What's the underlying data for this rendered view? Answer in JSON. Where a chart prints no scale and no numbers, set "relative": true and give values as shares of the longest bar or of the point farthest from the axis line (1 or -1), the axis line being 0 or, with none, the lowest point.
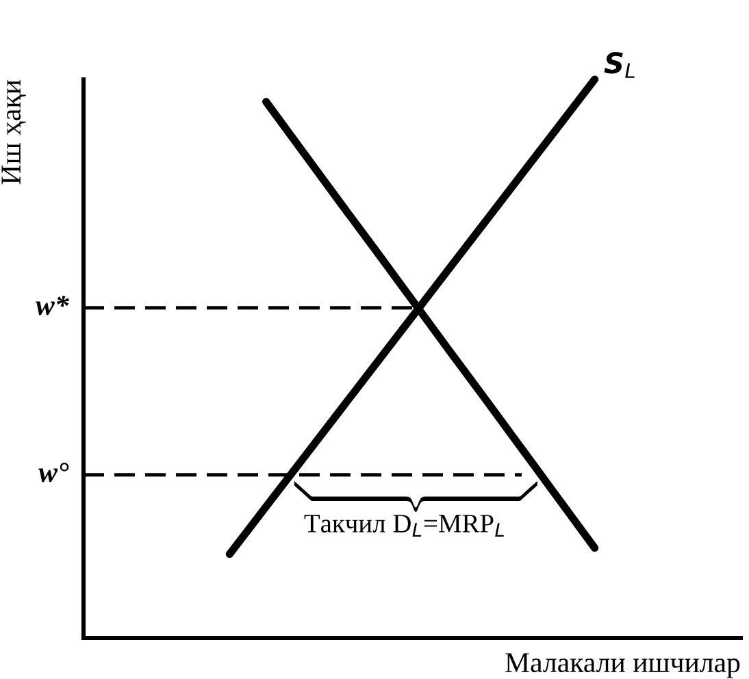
{
  "chart_data": {
    "type": "line",
    "relative": true,
    "xlabel": "Малакали ишчилар",
    "ylabel": "Иш ҳақи",
    "marker": "none",
    "categories": [
      null,
      null,
      null,
      null,
      null,
      null,
      null,
      null,
      null,
      null,
      null,
      null,
      null,
      null,
      null,
      null,
      null,
      null,
      null
    ],
    "series": [
      {
        "name": "S$_{L}$",
        "color": "#000000",
        "line_style": "solid",
        "values": [
          null,
          null,
          null,
          null,
          0.15,
          0.235,
          0.32,
          0.405,
          0.49,
          0.575,
          0.66,
          0.745,
          0.83,
          0.915,
          1.0,
          null,
          null,
          null,
          null
        ]
      },
      {
        "color": "#000000",
        "line_style": "solid",
        "values": [
          null,
          null,
          null,
          null,
          null,
          0.96,
          0.871,
          0.782,
          0.694,
          0.605,
          0.516,
          0.428,
          0.339,
          0.25,
          0.161,
          null,
          null,
          null,
          null
        ]
      },
      {
        "name": "w*",
        "color": "#000000",
        "line_style": "dashed",
        "values": [
          0.591,
          0.591,
          0.591,
          0.591,
          0.591,
          0.591,
          0.591,
          0.591,
          0.591,
          0.591,
          null,
          null,
          null,
          null,
          null,
          null,
          null,
          null,
          null
        ]
      },
      {
        "name": "w°",
        "color": "#000000",
        "line_style": "dashed",
        "values": [
          0.292,
          0.292,
          0.292,
          0.292,
          0.292,
          0.292,
          0.292,
          0.292,
          0.292,
          0.292,
          0.292,
          0.292,
          0.292,
          null,
          null,
          null,
          null,
          null,
          null
        ]
      }
    ],
    "annotations": [
      "Такчил D$_{L}$=MRP$_{L}$"
    ]
  }
}
